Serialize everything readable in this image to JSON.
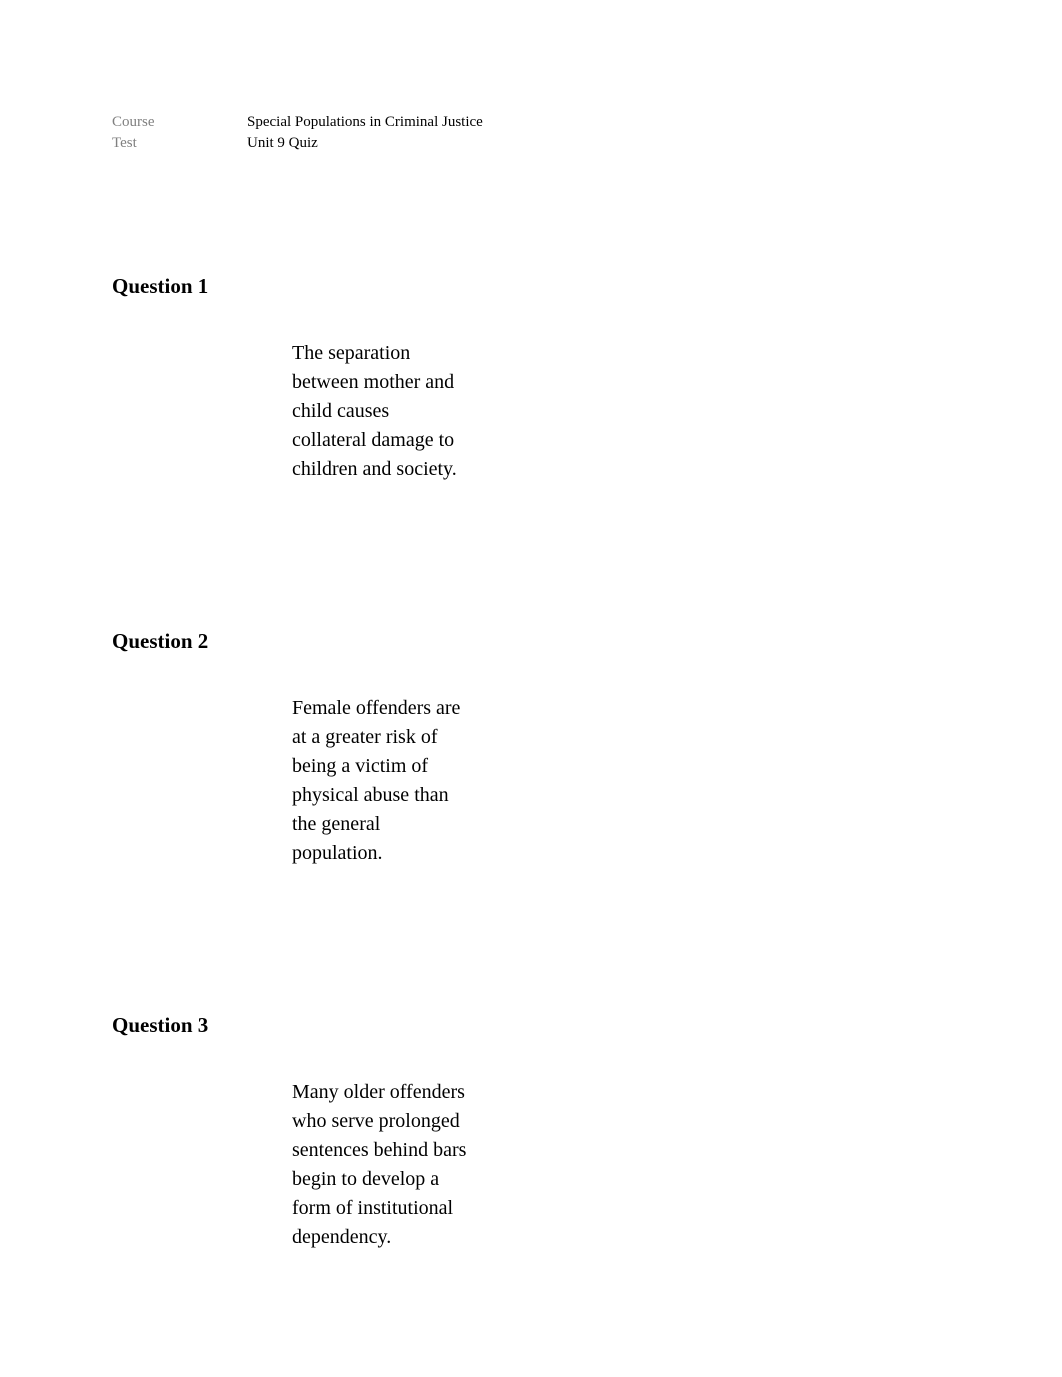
{
  "meta": {
    "course_label": "Course",
    "course_value": "Special Populations in Criminal Justice",
    "test_label": "Test",
    "test_value": "Unit 9 Quiz"
  },
  "questions": [
    {
      "heading": "Question 1",
      "text": "The separation between mother and child causes collateral damage to children and society."
    },
    {
      "heading": "Question 2",
      "text": "Female offenders are at a greater risk of being a victim of physical abuse than the general population."
    },
    {
      "heading": "Question 3",
      "text": "Many older offenders who serve prolonged sentences behind bars begin to develop a form of institutional dependency."
    }
  ]
}
